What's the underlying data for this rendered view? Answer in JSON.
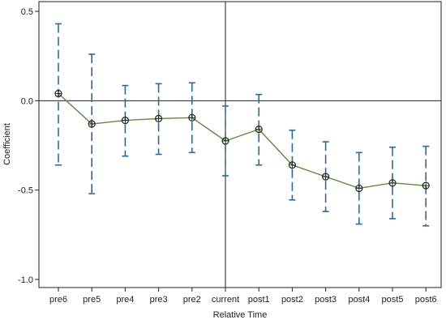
{
  "chart_data": {
    "type": "line",
    "subtype": "coefficient-plot-with-confidence-intervals",
    "xlabel": "Relative Time",
    "ylabel": "Coefficient",
    "categories": [
      "pre6",
      "pre5",
      "pre4",
      "pre3",
      "pre2",
      "current",
      "post1",
      "post2",
      "post3",
      "post4",
      "post5",
      "post6"
    ],
    "series": [
      {
        "values": [
          0.04,
          -0.13,
          -0.11,
          -0.1,
          -0.095,
          -0.225,
          -0.16,
          -0.36,
          -0.425,
          -0.49,
          -0.46,
          -0.475
        ],
        "ci_lower": [
          -0.36,
          -0.52,
          -0.31,
          -0.3,
          -0.29,
          -0.42,
          -0.36,
          -0.555,
          -0.62,
          -0.69,
          -0.66,
          -0.7
        ],
        "ci_upper": [
          0.43,
          0.26,
          0.085,
          0.095,
          0.1,
          -0.03,
          0.035,
          -0.165,
          -0.23,
          -0.29,
          -0.26,
          -0.255
        ]
      }
    ],
    "ylim": [
      -1.02,
      0.53
    ],
    "yticks": [
      0.5,
      0.0,
      -0.5,
      -1.0
    ],
    "ytick_labels": [
      "0.5",
      "0.0",
      "-0.5",
      "-1.0"
    ],
    "reference_lines": {
      "y": 0,
      "x_category": "current"
    },
    "grid": false,
    "colors": {
      "line": "#5a8a3c",
      "ci": "#2e6a94",
      "marker": "#222222",
      "axis": "#222222"
    }
  }
}
